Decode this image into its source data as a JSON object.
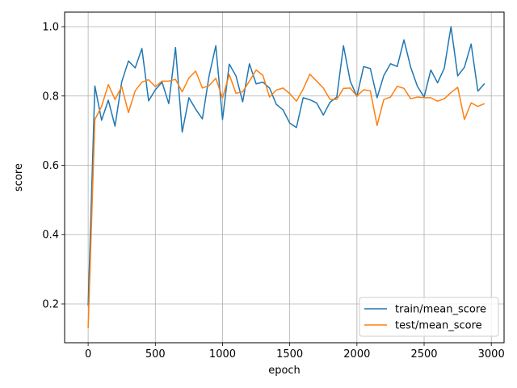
{
  "chart_data": {
    "type": "line",
    "xlabel": "epoch",
    "ylabel": "score",
    "xlim": [
      -175,
      3095
    ],
    "ylim": [
      0.088,
      1.042
    ],
    "xticks": [
      0,
      500,
      1000,
      1500,
      2000,
      2500,
      3000
    ],
    "yticks": [
      0.2,
      0.4,
      0.6,
      0.8,
      1.0
    ],
    "xtick_labels": [
      "0",
      "500",
      "1000",
      "1500",
      "2000",
      "2500",
      "3000"
    ],
    "ytick_labels": [
      "0.2",
      "0.4",
      "0.6",
      "0.8",
      "1.0"
    ],
    "grid": true,
    "legend_position": "lower-right",
    "x": [
      0,
      50,
      100,
      150,
      200,
      250,
      300,
      350,
      400,
      450,
      500,
      550,
      600,
      650,
      700,
      750,
      800,
      850,
      900,
      950,
      1000,
      1050,
      1100,
      1150,
      1200,
      1250,
      1300,
      1350,
      1400,
      1450,
      1500,
      1550,
      1600,
      1650,
      1700,
      1750,
      1800,
      1850,
      1900,
      1950,
      2000,
      2050,
      2100,
      2150,
      2200,
      2250,
      2300,
      2350,
      2400,
      2450,
      2500,
      2550,
      2600,
      2650,
      2700,
      2750,
      2800,
      2850,
      2900,
      2950
    ],
    "series": [
      {
        "name": "train/mean_score",
        "color": "#1f77b4",
        "values": [
          0.195,
          0.829,
          0.73,
          0.788,
          0.713,
          0.841,
          0.901,
          0.881,
          0.937,
          0.786,
          0.818,
          0.84,
          0.778,
          0.94,
          0.696,
          0.795,
          0.762,
          0.734,
          0.858,
          0.945,
          0.732,
          0.892,
          0.858,
          0.783,
          0.893,
          0.835,
          0.84,
          0.823,
          0.776,
          0.76,
          0.722,
          0.709,
          0.795,
          0.789,
          0.78,
          0.745,
          0.782,
          0.797,
          0.945,
          0.843,
          0.799,
          0.885,
          0.879,
          0.795,
          0.859,
          0.893,
          0.885,
          0.962,
          0.883,
          0.828,
          0.797,
          0.875,
          0.838,
          0.88,
          1.0,
          0.858,
          0.883,
          0.95,
          0.814,
          0.836
        ]
      },
      {
        "name": "test/mean_score",
        "color": "#ff7f0e",
        "values": [
          0.13,
          0.732,
          0.77,
          0.833,
          0.79,
          0.827,
          0.752,
          0.815,
          0.84,
          0.847,
          0.827,
          0.843,
          0.843,
          0.848,
          0.812,
          0.852,
          0.872,
          0.823,
          0.83,
          0.851,
          0.794,
          0.862,
          0.808,
          0.812,
          0.843,
          0.875,
          0.86,
          0.797,
          0.817,
          0.823,
          0.807,
          0.785,
          0.82,
          0.863,
          0.843,
          0.823,
          0.79,
          0.79,
          0.822,
          0.823,
          0.8,
          0.818,
          0.815,
          0.715,
          0.79,
          0.797,
          0.828,
          0.822,
          0.792,
          0.797,
          0.795,
          0.795,
          0.785,
          0.792,
          0.81,
          0.825,
          0.732,
          0.78,
          0.77,
          0.778
        ]
      }
    ]
  }
}
